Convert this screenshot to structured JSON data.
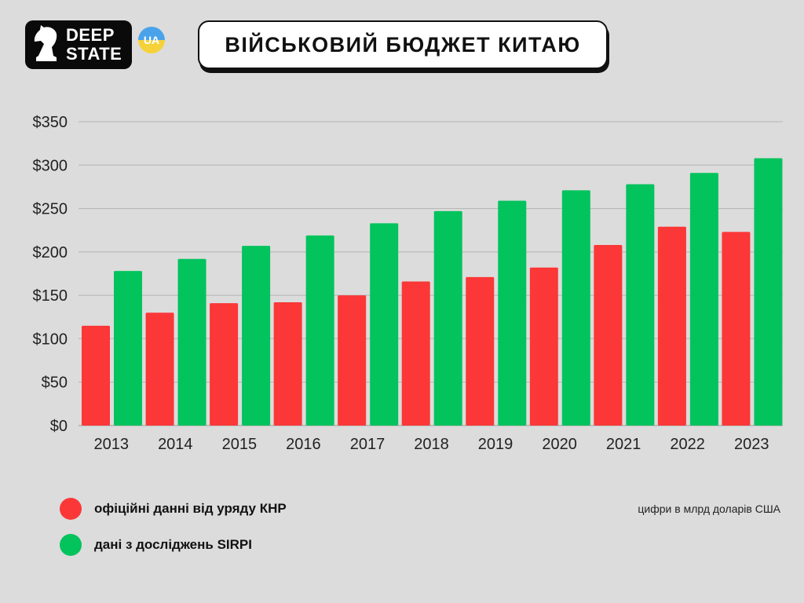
{
  "logo": {
    "line1": "DEEP",
    "line2": "STATE",
    "badge": "UA",
    "colors": {
      "badge_top": "#4aa3ea",
      "badge_bottom": "#f6d23a",
      "bg": "#0a0a0a"
    }
  },
  "header": {
    "title": "ВІЙСЬКОВИЙ БЮДЖЕТ КИТАЮ"
  },
  "legend": {
    "items": [
      {
        "label": "офіційні данні від уряду КНР",
        "color": "#fb3737"
      },
      {
        "label": "дані з досліджень SIRPI",
        "color": "#03c35c"
      }
    ]
  },
  "note": "цифри в млрд доларів США",
  "chart_data": {
    "type": "bar",
    "categories": [
      "2013",
      "2014",
      "2015",
      "2016",
      "2017",
      "2018",
      "2019",
      "2020",
      "2021",
      "2022",
      "2023"
    ],
    "series": [
      {
        "name": "офіційні данні від уряду КНР",
        "color": "#fb3737",
        "values": [
          115,
          130,
          141,
          142,
          150,
          166,
          171,
          182,
          208,
          229,
          223
        ]
      },
      {
        "name": "дані з досліджень SIRPI",
        "color": "#03c35c",
        "values": [
          178,
          192,
          207,
          219,
          233,
          247,
          259,
          271,
          278,
          291,
          308
        ]
      }
    ],
    "ylim": [
      0,
      350
    ],
    "yticks": [
      0,
      50,
      100,
      150,
      200,
      250,
      300,
      350
    ],
    "ytick_labels": [
      "$0",
      "$50",
      "$100",
      "$150",
      "$200",
      "$250",
      "$300",
      "$350"
    ],
    "grid": true,
    "legend_position": "bottom-left"
  }
}
